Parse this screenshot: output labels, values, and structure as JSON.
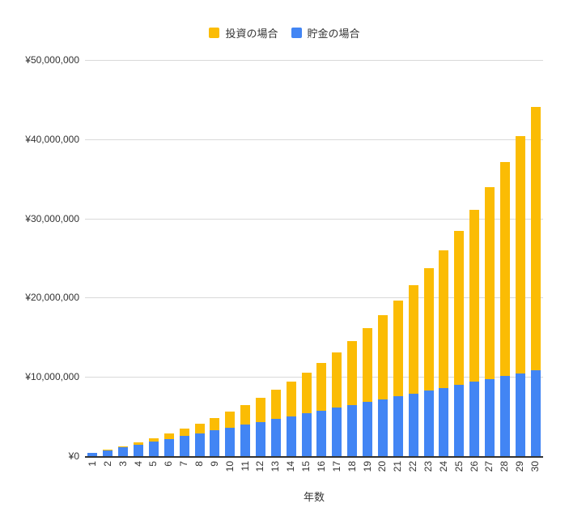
{
  "chart_data": {
    "type": "bar",
    "mode": "overlay",
    "title": "",
    "xlabel": "年数",
    "ylabel": "",
    "ylim": [
      0,
      50000000
    ],
    "grid": true,
    "legend_position": "top",
    "categories": [
      "1",
      "2",
      "3",
      "4",
      "5",
      "6",
      "7",
      "8",
      "9",
      "10",
      "11",
      "12",
      "13",
      "14",
      "15",
      "16",
      "17",
      "18",
      "19",
      "20",
      "21",
      "22",
      "23",
      "24",
      "25",
      "26",
      "27",
      "28",
      "29",
      "30"
    ],
    "series": [
      {
        "name": "投資の場合",
        "color": "#FBBC04",
        "values": [
          388800,
          808704,
          1262200,
          1751976,
          2280934,
          2852209,
          3469186,
          4135521,
          4855162,
          5632375,
          6471766,
          7378307,
          8357371,
          9414761,
          10556742,
          11790081,
          13122088,
          14560655,
          16114307,
          17792252,
          19604433,
          21561587,
          23675314,
          25958140,
          28423591,
          31086278,
          33961980,
          37067739,
          40421958,
          44044514
        ]
      },
      {
        "name": "貯金の場合",
        "color": "#4285F4",
        "values": [
          360000,
          720000,
          1080000,
          1440000,
          1800000,
          2160000,
          2520000,
          2880000,
          3240000,
          3600000,
          3960000,
          4320000,
          4680000,
          5040000,
          5400000,
          5760000,
          6120000,
          6480000,
          6840000,
          7200000,
          7560000,
          7920000,
          8280000,
          8640000,
          9000000,
          9360000,
          9720000,
          10080000,
          10440000,
          10800000
        ]
      }
    ],
    "y_ticks": [
      {
        "value": 50000000,
        "label": "¥50,000,000"
      },
      {
        "value": 40000000,
        "label": "¥40,000,000"
      },
      {
        "value": 30000000,
        "label": "¥30,000,000"
      },
      {
        "value": 20000000,
        "label": "¥20,000,000"
      },
      {
        "value": 10000000,
        "label": "¥10,000,000"
      },
      {
        "value": 0,
        "label": "¥0"
      }
    ]
  },
  "colors": {
    "grid": "#d9d9d9",
    "axis": "#333333",
    "text": "#333333",
    "background": "#ffffff"
  }
}
